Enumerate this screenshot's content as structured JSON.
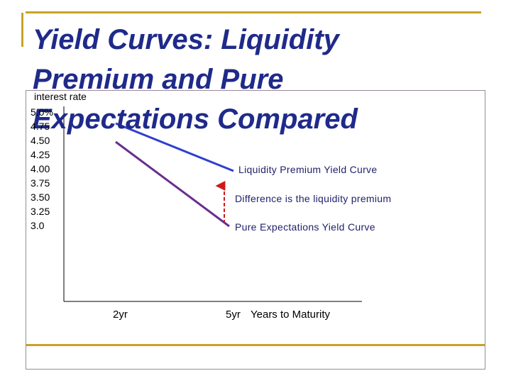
{
  "title": "Yield Curves: Liquidity Premium and Pure Expectations Compared",
  "colors": {
    "accent": "#c9a227",
    "title": "#1f2a8a",
    "liquidity_line": "#2f3fd0",
    "expectations_line": "#6a2e8c",
    "difference_arrow": "#d01818"
  },
  "diagram": {
    "y_label": "interest rate",
    "y_ticks": [
      "5.0%",
      "4.75",
      "4.50",
      "4.25",
      "4.00",
      "3.75",
      "3.50",
      "3.25",
      "3.0"
    ],
    "x_ticks": [
      "2yr",
      "5yr"
    ],
    "x_label": "Years to Maturity",
    "annotations": {
      "liquidity": "Liquidity Premium Yield Curve",
      "difference": "Difference is the liquidity premium",
      "expectations": "Pure Expectations Yield Curve"
    }
  }
}
